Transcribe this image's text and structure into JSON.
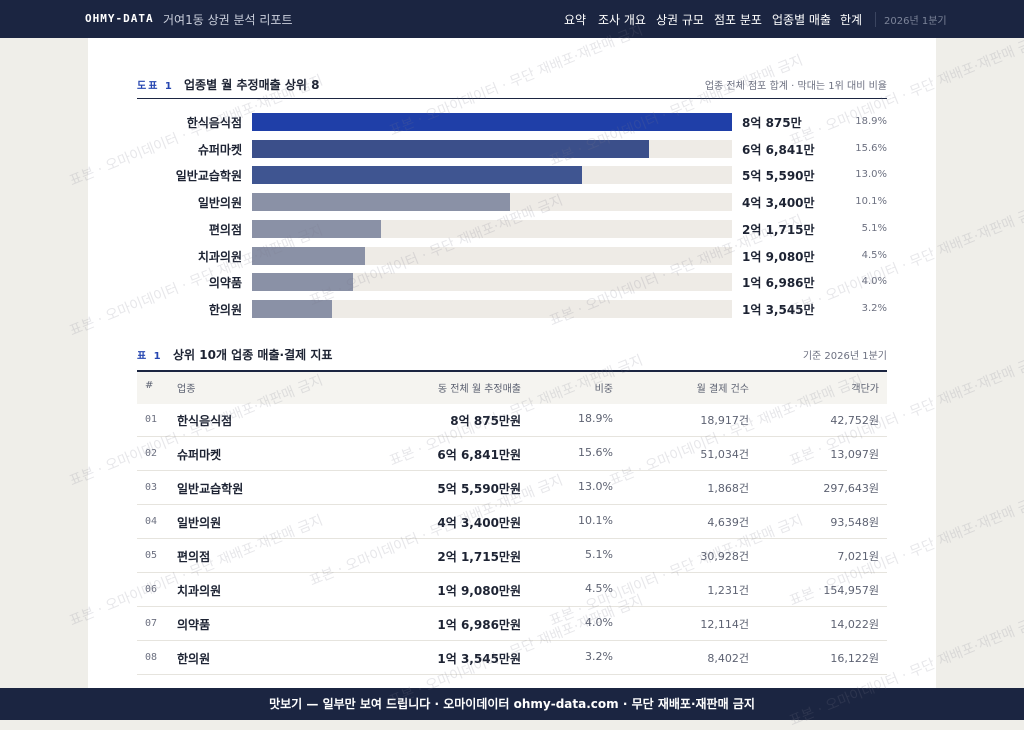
{
  "nav": {
    "brand": "OHMY-DATA",
    "report": "거여1동 상권 분석 리포트",
    "links": [
      "요약",
      "조사 개요",
      "상권 규모",
      "점포 분포",
      "업종별 매출",
      "한계"
    ],
    "period": "2026년 1분기"
  },
  "figure": {
    "tag": "도표 1",
    "title": "업종별 월 추정매출 상위 8",
    "note": "업종 전체 점포 합계 · 막대는 1위 대비 비율",
    "rows": [
      {
        "label": "한식음식점",
        "value": 80875,
        "value_label": "8억 875만",
        "share": "18.9%"
      },
      {
        "label": "슈퍼마켓",
        "value": 66841,
        "value_label": "6억 6,841만",
        "share": "15.6%"
      },
      {
        "label": "일반교습학원",
        "value": 55590,
        "value_label": "5억 5,590만",
        "share": "13.0%"
      },
      {
        "label": "일반의원",
        "value": 43400,
        "value_label": "4억 3,400만",
        "share": "10.1%"
      },
      {
        "label": "편의점",
        "value": 21715,
        "value_label": "2억 1,715만",
        "share": "5.1%"
      },
      {
        "label": "치과의원",
        "value": 19080,
        "value_label": "1억 9,080만",
        "share": "4.5%"
      },
      {
        "label": "의약품",
        "value": 16986,
        "value_label": "1억 6,986만",
        "share": "4.0%"
      },
      {
        "label": "한의원",
        "value": 13545,
        "value_label": "1억 3,545만",
        "share": "3.2%"
      }
    ]
  },
  "table": {
    "tag": "표 1",
    "title": "상위 10개 업종 매출·결제 지표",
    "note": "기준 2026년 1분기",
    "header": [
      "#",
      "업종",
      "동 전체 월 추정매출",
      "비중",
      "월 결제 건수",
      "객단가"
    ],
    "rows": [
      [
        "01",
        "한식음식점",
        "8억 875만원",
        "18.9%",
        "18,917건",
        "42,752원"
      ],
      [
        "02",
        "슈퍼마켓",
        "6억 6,841만원",
        "15.6%",
        "51,034건",
        "13,097원"
      ],
      [
        "03",
        "일반교습학원",
        "5억 5,590만원",
        "13.0%",
        "1,868건",
        "297,643원"
      ],
      [
        "04",
        "일반의원",
        "4억 3,400만원",
        "10.1%",
        "4,639건",
        "93,548원"
      ],
      [
        "05",
        "편의점",
        "2억 1,715만원",
        "5.1%",
        "30,928건",
        "7,021원"
      ],
      [
        "06",
        "치과의원",
        "1억 9,080만원",
        "4.5%",
        "1,231건",
        "154,957원"
      ],
      [
        "07",
        "의약품",
        "1억 6,986만원",
        "4.0%",
        "12,114건",
        "14,022원"
      ],
      [
        "08",
        "한의원",
        "1억 3,545만원",
        "3.2%",
        "8,402건",
        "16,122원"
      ]
    ]
  },
  "watermark": "표본 · 오마이데이터 · 무단 재배포·재판매 금지",
  "footer": "맛보기 — 일부만 보여 드립니다 · 오마이데이터 ohmy-data.com · 무단 재배포·재판매 금지"
}
